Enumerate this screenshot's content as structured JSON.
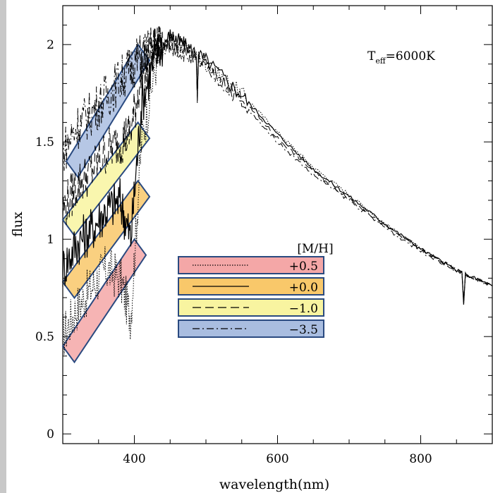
{
  "chart_data": {
    "type": "line",
    "title": "",
    "xlabel": "wavelength(nm)",
    "ylabel": "flux",
    "xlim": [
      300,
      900
    ],
    "ylim": [
      -0.05,
      2.2
    ],
    "x_ticks": [
      400,
      600,
      800
    ],
    "y_ticks": [
      0,
      0.5,
      1,
      1.5,
      2
    ],
    "x_tick_labels": [
      "400",
      "600",
      "800"
    ],
    "y_tick_labels": [
      "0",
      "0.5",
      "1",
      "1.5",
      "2"
    ],
    "annotation": {
      "main": "T",
      "sub": "eff",
      "rest": "=6000K"
    },
    "legend_title": "[M/H]",
    "legend_placement": "center",
    "series": [
      {
        "name": "+0.5",
        "style": "dotted",
        "highlight_color": "#f4a7a7",
        "band_x": [
          300,
          400
        ],
        "band_y": [
          0.45,
          1.0
        ],
        "x": [
          300,
          320,
          340,
          360,
          380,
          395,
          410,
          430,
          450,
          470,
          500,
          550,
          600,
          650,
          700,
          750,
          800,
          850,
          900
        ],
        "y": [
          0.5,
          0.65,
          0.75,
          0.85,
          0.8,
          0.6,
          1.5,
          1.9,
          2.02,
          1.98,
          1.9,
          1.75,
          1.55,
          1.37,
          1.23,
          1.08,
          0.95,
          0.84,
          0.76
        ]
      },
      {
        "name": "+0.0",
        "style": "solid",
        "highlight_color": "#f9c86a",
        "band_x": [
          300,
          405
        ],
        "band_y": [
          0.78,
          1.3
        ],
        "x": [
          300,
          320,
          340,
          360,
          380,
          395,
          410,
          430,
          450,
          470,
          500,
          550,
          600,
          650,
          700,
          750,
          800,
          850,
          900
        ],
        "y": [
          0.85,
          0.98,
          1.05,
          1.15,
          1.2,
          1.0,
          1.7,
          1.95,
          2.05,
          2.0,
          1.92,
          1.74,
          1.54,
          1.36,
          1.22,
          1.08,
          0.95,
          0.84,
          0.76
        ]
      },
      {
        "name": "−1.0",
        "style": "long-dash",
        "highlight_color": "#f8f4a0",
        "band_x": [
          300,
          405
        ],
        "band_y": [
          1.1,
          1.6
        ],
        "x": [
          300,
          320,
          340,
          360,
          380,
          395,
          410,
          430,
          450,
          470,
          500,
          550,
          600,
          650,
          700,
          750,
          800,
          850,
          900
        ],
        "y": [
          1.15,
          1.28,
          1.35,
          1.45,
          1.5,
          1.55,
          1.85,
          1.98,
          2.02,
          1.98,
          1.9,
          1.72,
          1.52,
          1.35,
          1.21,
          1.07,
          0.95,
          0.84,
          0.76
        ]
      },
      {
        "name": "−3.5",
        "style": "dash-dot",
        "highlight_color": "#a9bde0",
        "band_x": [
          305,
          405
        ],
        "band_y": [
          1.4,
          2.0
        ],
        "x": [
          300,
          320,
          340,
          360,
          380,
          395,
          410,
          430,
          450,
          470,
          500,
          550,
          600,
          650,
          700,
          750,
          800,
          850,
          900
        ],
        "y": [
          1.45,
          1.58,
          1.65,
          1.73,
          1.82,
          1.88,
          1.95,
          1.99,
          1.98,
          1.95,
          1.88,
          1.7,
          1.5,
          1.33,
          1.2,
          1.06,
          0.94,
          0.84,
          0.76
        ]
      }
    ]
  }
}
